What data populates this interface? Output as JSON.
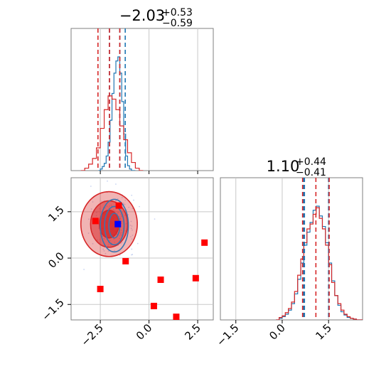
{
  "chart_data": [
    {
      "type": "histogram",
      "panel": "marginal-param1",
      "title": {
        "value": "−2.03",
        "sup": "+0.53",
        "sub": "−0.59"
      },
      "xlim": [
        -4.0,
        3.3
      ],
      "grid": true,
      "series": [
        {
          "color": "#1f77b4",
          "bins": [
            -2.6,
            -2.5,
            -2.4,
            -2.3,
            -2.2,
            -2.1,
            -2.0,
            -1.9,
            -1.8,
            -1.7,
            -1.6,
            -1.5,
            -1.4,
            -1.3,
            -1.2,
            -1.1,
            -1.0,
            -0.9,
            -0.8
          ],
          "counts": [
            0,
            2,
            5,
            9,
            18,
            35,
            62,
            95,
            120,
            135,
            140,
            120,
            85,
            45,
            18,
            6,
            2,
            0,
            0
          ],
          "quantile_lines": [
            -2.03,
            -1.5,
            -1.22
          ]
        },
        {
          "color": "#d62728",
          "bins": [
            -3.5,
            -3.3,
            -3.1,
            -2.9,
            -2.7,
            -2.5,
            -2.3,
            -2.1,
            -1.9,
            -1.7,
            -1.5,
            -1.3,
            -1.1,
            -0.9,
            -0.7,
            -0.5
          ],
          "counts": [
            0,
            3,
            8,
            15,
            28,
            52,
            75,
            92,
            88,
            75,
            55,
            38,
            22,
            10,
            3,
            0
          ],
          "quantile_lines": [
            -2.62,
            -2.03,
            -1.5
          ]
        }
      ]
    },
    {
      "type": "histogram",
      "panel": "marginal-param2",
      "title": {
        "value": "1.10",
        "sup": "+0.44",
        "sub": "−0.41"
      },
      "xlim": [
        -2.0,
        2.6
      ],
      "xticks": [
        "−1.5",
        "0.0",
        "1.5"
      ],
      "grid": true,
      "series": [
        {
          "color": "#1f77b4",
          "bins": [
            -0.2,
            -0.1,
            0.0,
            0.1,
            0.2,
            0.3,
            0.4,
            0.5,
            0.6,
            0.7,
            0.8,
            0.9,
            1.0,
            1.1,
            1.2,
            1.3,
            1.4,
            1.5,
            1.6,
            1.7,
            1.8,
            1.9,
            2.0,
            2.1,
            2.2,
            2.3,
            2.4,
            2.5
          ],
          "counts": [
            0,
            2,
            4,
            7,
            12,
            20,
            32,
            50,
            70,
            92,
            108,
            120,
            135,
            140,
            128,
            115,
            95,
            70,
            48,
            30,
            18,
            10,
            6,
            3,
            2,
            1,
            0,
            0
          ],
          "quantile_lines": [
            0.69,
            0.72,
            1.5
          ]
        },
        {
          "color": "#d62728",
          "bins": [
            -0.2,
            -0.1,
            0.0,
            0.1,
            0.2,
            0.3,
            0.4,
            0.5,
            0.6,
            0.7,
            0.8,
            0.9,
            1.0,
            1.1,
            1.2,
            1.3,
            1.4,
            1.5,
            1.6,
            1.7,
            1.8,
            1.9,
            2.0,
            2.1,
            2.2,
            2.3,
            2.4,
            2.5
          ],
          "counts": [
            0,
            3,
            5,
            9,
            14,
            22,
            35,
            55,
            75,
            95,
            112,
            118,
            130,
            138,
            125,
            112,
            92,
            68,
            46,
            30,
            20,
            12,
            7,
            4,
            2,
            1,
            0,
            0
          ],
          "quantile_lines": [
            0.66,
            1.09,
            1.52
          ]
        }
      ]
    },
    {
      "type": "scatter",
      "panel": "joint",
      "xlim": [
        -4.0,
        3.3
      ],
      "ylim": [
        -2.0,
        2.6
      ],
      "xticks": [
        "−2.5",
        "0.0",
        "2.5"
      ],
      "yticks": [
        "−1.5",
        "0.0",
        "1.5"
      ],
      "grid": true,
      "contours": [
        {
          "color": "#d62728",
          "cx": -2.05,
          "cy": 1.1,
          "rx": [
            0.5,
            0.95,
            1.45
          ],
          "ry": [
            0.45,
            0.75,
            1.05
          ],
          "filled": true
        },
        {
          "color": "#3b75af",
          "cx": -1.78,
          "cy": 1.05,
          "rx": [
            0.28,
            0.5,
            0.72
          ],
          "ry": [
            0.4,
            0.62,
            0.85
          ],
          "filled": false
        }
      ],
      "markers": [
        {
          "x": -1.6,
          "y": 1.1,
          "color": "#0000ff"
        },
        {
          "x": -1.55,
          "y": 1.7,
          "color": "#ff0000"
        },
        {
          "x": -2.75,
          "y": 1.2,
          "color": "#ff0000"
        },
        {
          "x": -1.2,
          "y": -0.1,
          "color": "#ff0000"
        },
        {
          "x": 2.85,
          "y": 0.5,
          "color": "#ff0000"
        },
        {
          "x": -2.5,
          "y": -1.0,
          "color": "#ff0000"
        },
        {
          "x": 0.6,
          "y": -0.7,
          "color": "#ff0000"
        },
        {
          "x": 2.4,
          "y": -0.65,
          "color": "#ff0000"
        },
        {
          "x": 0.25,
          "y": -1.55,
          "color": "#ff0000"
        },
        {
          "x": 1.4,
          "y": -1.9,
          "color": "#ff0000"
        }
      ]
    }
  ]
}
